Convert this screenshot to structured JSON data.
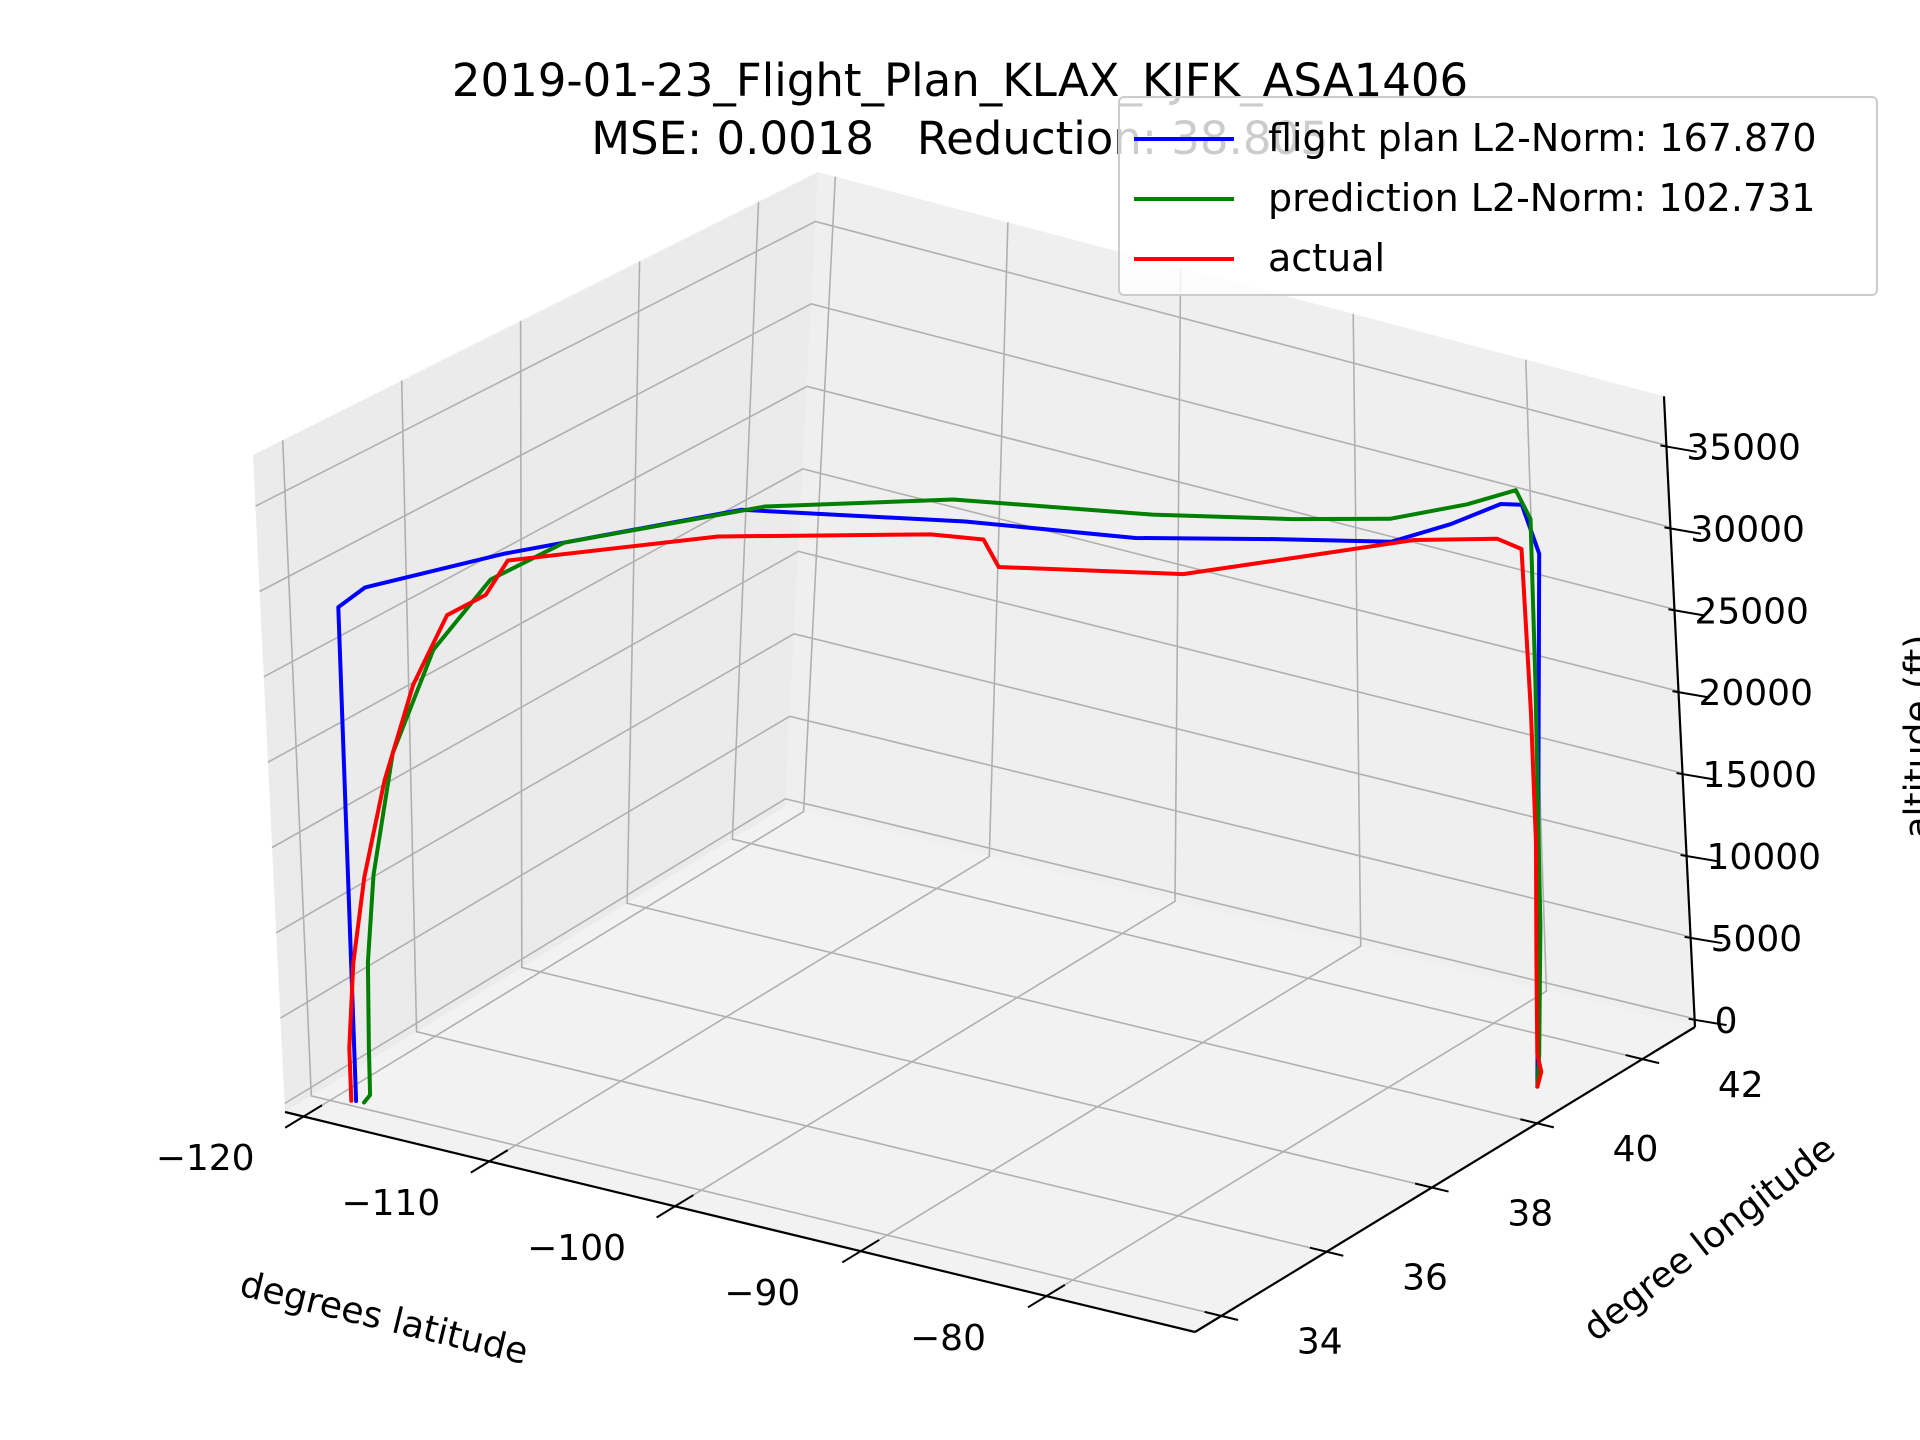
{
  "title": {
    "line1": "2019-01-23_Flight_Plan_KLAX_KJFK_ASA1406",
    "line2": "MSE: 0.0018   Reduction: 38.805"
  },
  "colors": {
    "flight_plan": "#0000ff",
    "prediction": "#008000",
    "actual": "#ff0000",
    "pane": "#f2f2f2",
    "grid": "#b0b0b0"
  },
  "chart_data": {
    "type": "line",
    "projection": "3d",
    "title": "2019-01-23_Flight_Plan_KLAX_KJFK_ASA1406\nMSE: 0.0018   Reduction: 38.805",
    "xlabel": "degrees latitude",
    "ylabel": "degree longitude",
    "zlabel": "altitude (ft)",
    "xlim": [
      -121,
      -72
    ],
    "ylim": [
      33.5,
      43
    ],
    "zlim": [
      -500,
      38000
    ],
    "xticks": [
      -120,
      -110,
      -100,
      -90,
      -80
    ],
    "xtick_labels": [
      "−120",
      "−110",
      "−100",
      "−90",
      "−80"
    ],
    "yticks": [
      34,
      36,
      38,
      40,
      42
    ],
    "ytick_labels": [
      "34",
      "36",
      "38",
      "40",
      "42"
    ],
    "zticks": [
      0,
      5000,
      10000,
      15000,
      20000,
      25000,
      30000,
      35000
    ],
    "ztick_labels": [
      "0",
      "5000",
      "10000",
      "15000",
      "20000",
      "25000",
      "30000",
      "35000"
    ],
    "grid": true,
    "legend_position": "upper right",
    "series": [
      {
        "name": "flight plan L2-Norm: 167.870",
        "color": "#0000ff",
        "points": [
          [
            -118.4,
            33.94,
            0
          ],
          [
            -118.3,
            33.98,
            29000
          ],
          [
            -117.5,
            34.2,
            30000
          ],
          [
            -113.0,
            35.2,
            31500
          ],
          [
            -105.0,
            36.8,
            33500
          ],
          [
            -97.0,
            38.2,
            32500
          ],
          [
            -90.0,
            39.0,
            32000
          ],
          [
            -84.0,
            39.6,
            32500
          ],
          [
            -79.0,
            40.1,
            32800
          ],
          [
            -76.5,
            40.4,
            34000
          ],
          [
            -74.2,
            40.6,
            35500
          ],
          [
            -73.0,
            40.6,
            35800
          ],
          [
            -72.2,
            40.62,
            33000
          ],
          [
            -73.78,
            40.64,
            0
          ]
        ]
      },
      {
        "name": "prediction L2-Norm: 102.731",
        "color": "#008000",
        "points": [
          [
            -118.0,
            33.95,
            0
          ],
          [
            -117.8,
            34.0,
            400
          ],
          [
            -117.9,
            34.05,
            3000
          ],
          [
            -117.9,
            34.1,
            8000
          ],
          [
            -117.7,
            34.2,
            13000
          ],
          [
            -117.0,
            34.4,
            20000
          ],
          [
            -115.5,
            34.7,
            26000
          ],
          [
            -113.5,
            35.1,
            30000
          ],
          [
            -111.0,
            35.6,
            32000
          ],
          [
            -104.0,
            36.9,
            33800
          ],
          [
            -97.0,
            38.0,
            34200
          ],
          [
            -89.0,
            39.0,
            33700
          ],
          [
            -83.0,
            39.6,
            34000
          ],
          [
            -79.0,
            40.1,
            34200
          ],
          [
            -75.5,
            40.4,
            35500
          ],
          [
            -73.3,
            40.6,
            36600
          ],
          [
            -72.6,
            40.62,
            35000
          ],
          [
            -72.8,
            40.63,
            25000
          ],
          [
            -73.2,
            40.64,
            10000
          ],
          [
            -73.6,
            40.64,
            2000
          ],
          [
            -73.78,
            40.64,
            0
          ]
        ]
      },
      {
        "name": "actual",
        "color": "#ff0000",
        "points": [
          [
            -118.6,
            33.92,
            0
          ],
          [
            -118.7,
            33.96,
            3000
          ],
          [
            -118.4,
            34.0,
            8000
          ],
          [
            -117.9,
            34.1,
            13000
          ],
          [
            -117.2,
            34.3,
            18500
          ],
          [
            -116.2,
            34.55,
            24000
          ],
          [
            -115.0,
            34.8,
            28000
          ],
          [
            -113.8,
            35.1,
            29000
          ],
          [
            -113.0,
            35.25,
            31000
          ],
          [
            -106.0,
            36.7,
            31800
          ],
          [
            -98.0,
            37.9,
            32000
          ],
          [
            -96.0,
            38.2,
            31700
          ],
          [
            -95.5,
            38.3,
            30000
          ],
          [
            -88.0,
            39.2,
            30000
          ],
          [
            -83.0,
            39.7,
            31500
          ],
          [
            -78.0,
            40.2,
            33000
          ],
          [
            -74.5,
            40.6,
            33300
          ],
          [
            -73.2,
            40.62,
            33000
          ],
          [
            -73.1,
            40.62,
            23000
          ],
          [
            -73.2,
            40.63,
            15000
          ],
          [
            -73.5,
            40.64,
            8000
          ],
          [
            -73.7,
            40.64,
            2000
          ],
          [
            -73.5,
            40.63,
            1000
          ],
          [
            -73.78,
            40.64,
            0
          ]
        ]
      }
    ]
  }
}
